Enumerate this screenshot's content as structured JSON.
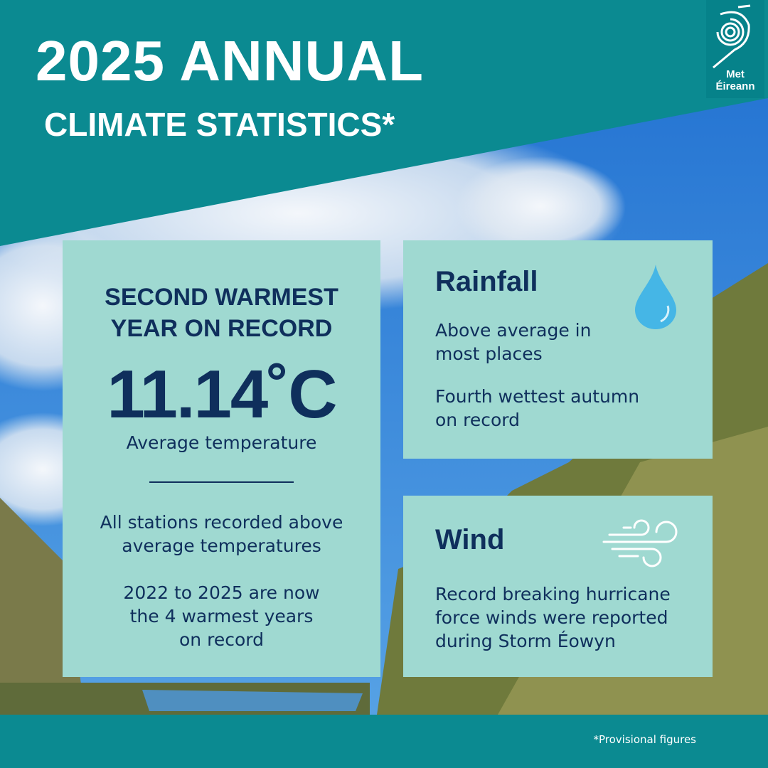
{
  "header": {
    "title_line1": "2025 ANNUAL",
    "title_line2": "CLIMATE STATISTICS*",
    "logo": [
      "Met",
      "Éireann"
    ]
  },
  "temperature_card": {
    "heading": [
      "SECOND WARMEST",
      "YEAR ON RECORD"
    ],
    "value": "11.14˚C",
    "value_caption": "Average temperature",
    "notes": [
      [
        "All stations recorded above",
        "average temperatures"
      ],
      [
        "2022 to 2025 are now",
        "the 4 warmest years",
        "on record"
      ]
    ]
  },
  "rainfall_card": {
    "title": "Rainfall",
    "items": [
      [
        "Above average in",
        "most places"
      ],
      [
        "Fourth wettest autumn",
        "on record"
      ]
    ]
  },
  "wind_card": {
    "title": "Wind",
    "items": [
      [
        "Record breaking hurricane",
        "force winds were reported",
        "during Storm Éowyn"
      ]
    ]
  },
  "footer": {
    "note": "*Provisional figures"
  }
}
